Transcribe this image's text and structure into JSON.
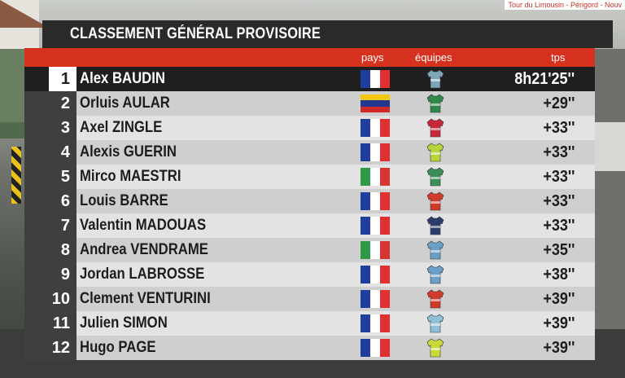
{
  "broadcast_tag": "Tour du Limousin - Périgord - Nouv",
  "title": "CLASSEMENT GÉNÉRAL PROVISOIRE",
  "columns": {
    "pays": "pays",
    "equipes": "équipes",
    "tps": "tps"
  },
  "colors": {
    "title_bar": "#2a2a2b",
    "header_bar": "#d6311f",
    "first_row": "#1f1f20",
    "row_light": "#e3e3e3",
    "row_dark": "#cfcfcf"
  },
  "standings": [
    {
      "pos": "1",
      "name": "Alex BAUDIN",
      "country": "FR",
      "jersey_color": "#7fa6b8",
      "time": "8h21'25''"
    },
    {
      "pos": "2",
      "name": "Orluis AULAR",
      "country": "VE",
      "jersey_color": "#2f8a4a",
      "time": "+29''"
    },
    {
      "pos": "3",
      "name": "Axel ZINGLE",
      "country": "FR",
      "jersey_color": "#c9283a",
      "time": "+33''"
    },
    {
      "pos": "4",
      "name": "Alexis GUERIN",
      "country": "FR",
      "jersey_color": "#b7d43a",
      "time": "+33''"
    },
    {
      "pos": "5",
      "name": "Mirco MAESTRI",
      "country": "IT",
      "jersey_color": "#3d8d5a",
      "time": "+33''"
    },
    {
      "pos": "6",
      "name": "Louis BARRE",
      "country": "FR",
      "jersey_color": "#d23b2c",
      "time": "+33''"
    },
    {
      "pos": "7",
      "name": "Valentin MADOUAS",
      "country": "FR",
      "jersey_color": "#2c3d6b",
      "time": "+33''"
    },
    {
      "pos": "8",
      "name": "Andrea VENDRAME",
      "country": "IT",
      "jersey_color": "#6aa0c8",
      "time": "+35''"
    },
    {
      "pos": "9",
      "name": "Jordan LABROSSE",
      "country": "FR",
      "jersey_color": "#6aa0c8",
      "time": "+38''"
    },
    {
      "pos": "10",
      "name": "Clement VENTURINI",
      "country": "FR",
      "jersey_color": "#d23b2c",
      "time": "+39''"
    },
    {
      "pos": "11",
      "name": "Julien SIMON",
      "country": "FR",
      "jersey_color": "#8fc0d8",
      "time": "+39''"
    },
    {
      "pos": "12",
      "name": "Hugo PAGE",
      "country": "FR",
      "jersey_color": "#c9d93a",
      "time": "+39''"
    }
  ]
}
